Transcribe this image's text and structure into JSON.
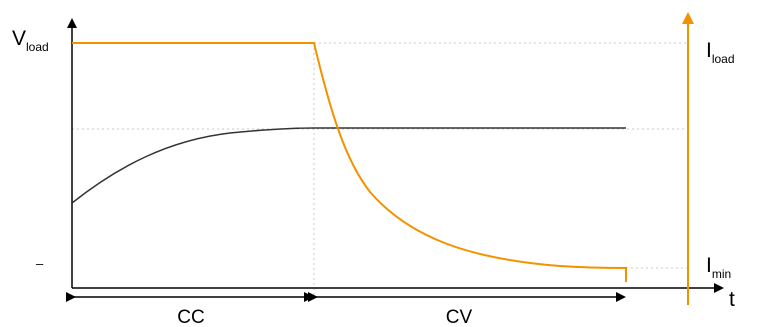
{
  "diagram": {
    "y_axis_left": {
      "symbol": "V",
      "subscript": "load"
    },
    "y_axis_right": {
      "symbol": "I",
      "subscript": "load"
    },
    "x_axis": {
      "label": "t"
    },
    "min_marker": {
      "symbol": "I",
      "subscript": "min"
    },
    "left_tick_mark": "–",
    "phases": [
      {
        "label": "CC"
      },
      {
        "label": "CV"
      }
    ],
    "colors": {
      "voltage": "#333333",
      "current": "#f39200",
      "axis": "#000000",
      "guide": "#c8c8c8"
    }
  }
}
